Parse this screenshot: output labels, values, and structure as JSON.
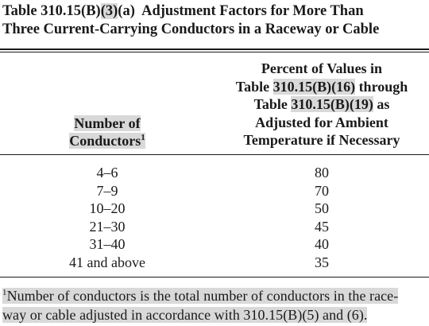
{
  "title": {
    "table_ref_pre": "Table 310.15(B)",
    "table_ref_hl": "(3)",
    "table_ref_post": "(a)",
    "text_line1": "Adjustment Factors for More Than",
    "text_line2": "Three Current-Carrying Conductors in a Raceway or Cable"
  },
  "headers": {
    "col1_line1": "Number of",
    "col1_line2": "Conductors",
    "col1_sup": "1",
    "col2_line1": "Percent of Values in",
    "col2_line2_pre": "Table ",
    "col2_line2_ref": "310.15(B)(16)",
    "col2_line2_post": " through",
    "col2_line3_pre": "Table ",
    "col2_line3_ref": "310.15(B)(19)",
    "col2_line3_post": " as",
    "col2_line4": "Adjusted for Ambient",
    "col2_line5": "Temperature if Necessary"
  },
  "rows": [
    {
      "conductors": "4–6",
      "percent": "80"
    },
    {
      "conductors": "7–9",
      "percent": "70"
    },
    {
      "conductors": "10–20",
      "percent": "50"
    },
    {
      "conductors": "21–30",
      "percent": "45"
    },
    {
      "conductors": "31–40",
      "percent": "40"
    },
    {
      "conductors": "41 and above",
      "percent": "35"
    }
  ],
  "footnote": {
    "marker": "1",
    "line1": "Number of conductors is the total number of conductors in the race-",
    "line2": "way or cable adjusted in accordance with 310.15(B)(5) and (6)."
  }
}
